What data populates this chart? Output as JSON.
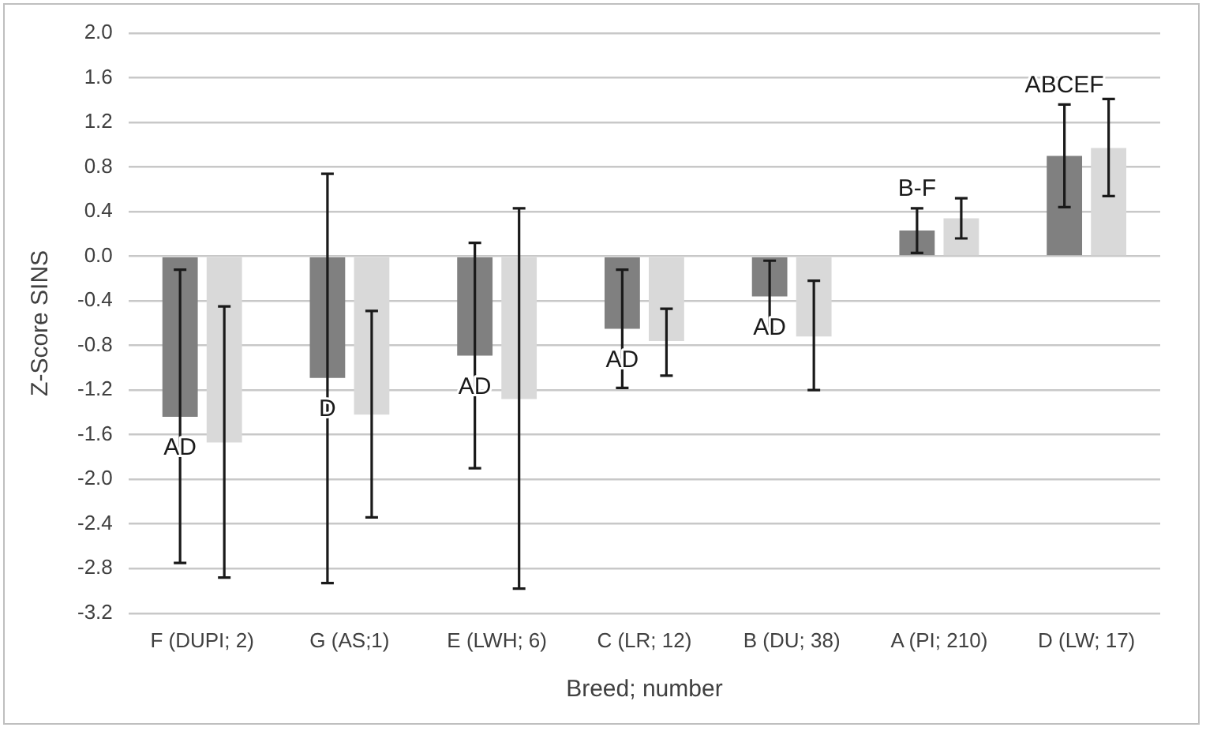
{
  "chart_data": {
    "type": "bar",
    "xlabel": "Breed; number",
    "ylabel": "Z-Score SINS",
    "categories": [
      "F (DUPI; 2)",
      "G (AS;1)",
      "E (LWH; 6)",
      "C (LR; 12)",
      "B (DU; 38)",
      "A (PI; 210)",
      "D (LW; 17)"
    ],
    "series": [
      {
        "color": "#808080",
        "values": [
          -1.44,
          -1.09,
          -0.89,
          -0.65,
          -0.36,
          0.23,
          0.9
        ],
        "errors": [
          [
            -2.75,
            -0.12
          ],
          [
            -2.93,
            0.74
          ],
          [
            -1.9,
            0.12
          ],
          [
            -1.18,
            -0.12
          ],
          [
            -0.67,
            -0.04
          ],
          [
            0.03,
            0.43
          ],
          [
            0.44,
            1.36
          ]
        ]
      },
      {
        "color": "#d9d9d9",
        "values": [
          -1.67,
          -1.42,
          -1.28,
          -0.76,
          -0.72,
          0.34,
          0.97
        ],
        "errors": [
          [
            -2.88,
            -0.45
          ],
          [
            -2.34,
            -0.49
          ],
          [
            -2.98,
            0.43
          ],
          [
            -1.07,
            -0.47
          ],
          [
            -1.2,
            -0.22
          ],
          [
            0.16,
            0.52
          ],
          [
            0.54,
            1.41
          ]
        ]
      }
    ],
    "ylim": [
      -3.2,
      2.0
    ],
    "yticks": [
      {
        "value": -3.2,
        "label": "-3.2"
      },
      {
        "value": -2.8,
        "label": "-2.8"
      },
      {
        "value": -2.4,
        "label": "-2.4"
      },
      {
        "value": -2,
        "label": "-2.0"
      },
      {
        "value": -1.6,
        "label": "-1.6"
      },
      {
        "value": -1.2,
        "label": "-1.2"
      },
      {
        "value": -0.8,
        "label": "-0.8"
      },
      {
        "value": -0.4,
        "label": "-0.4"
      },
      {
        "value": 0,
        "label": "0.0"
      },
      {
        "value": 0.4,
        "label": "0.4"
      },
      {
        "value": 0.8,
        "label": "0.8"
      },
      {
        "value": 1.2,
        "label": "1.2"
      },
      {
        "value": 1.6,
        "label": "1.6"
      },
      {
        "value": 2,
        "label": "2.0"
      }
    ],
    "grid": "y",
    "legend": false,
    "annotations": [
      "AD",
      "D",
      "AD",
      "AD",
      "AD",
      "B-F",
      "ABCEF"
    ]
  }
}
